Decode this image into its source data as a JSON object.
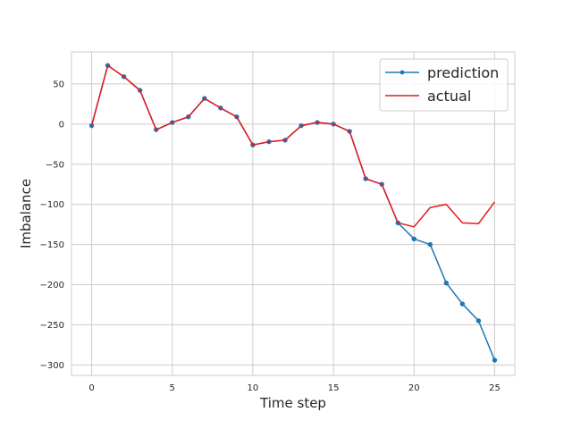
{
  "chart_data": {
    "type": "line",
    "xlabel": "Time step",
    "ylabel": "Imbalance",
    "xlim": [
      -1.25,
      26.25
    ],
    "ylim": [
      -313,
      90
    ],
    "xticks": [
      0,
      5,
      10,
      15,
      20,
      25
    ],
    "xtick_labels": [
      "0",
      "5",
      "10",
      "15",
      "20",
      "25"
    ],
    "yticks": [
      50,
      0,
      -50,
      -100,
      -150,
      -200,
      -250,
      -300
    ],
    "ytick_labels": [
      "50",
      "0",
      "−50",
      "−100",
      "−150",
      "−200",
      "−250",
      "−300"
    ],
    "grid": true,
    "legend_position": "top-right",
    "x": [
      0,
      1,
      2,
      3,
      4,
      5,
      6,
      7,
      8,
      9,
      10,
      11,
      12,
      13,
      14,
      15,
      16,
      17,
      18,
      19,
      20,
      21,
      22,
      23,
      24,
      25
    ],
    "series": [
      {
        "name": "prediction",
        "color": "#1f77b4",
        "marker": true,
        "values": [
          -2,
          73,
          59,
          42,
          -7,
          2,
          9,
          32,
          20,
          9,
          -26,
          -22,
          -20,
          -2,
          2,
          0,
          -9,
          -68,
          -75,
          -123,
          -143,
          -150,
          -198,
          -224,
          -245,
          -294
        ]
      },
      {
        "name": "actual",
        "color": "#e31a1c",
        "marker": false,
        "values": [
          -2,
          73,
          59,
          42,
          -7,
          2,
          9,
          32,
          20,
          9,
          -26,
          -22,
          -20,
          -2,
          2,
          0,
          -9,
          -68,
          -75,
          -123,
          -128,
          -104,
          -100,
          -123,
          -124,
          -97
        ]
      }
    ]
  }
}
